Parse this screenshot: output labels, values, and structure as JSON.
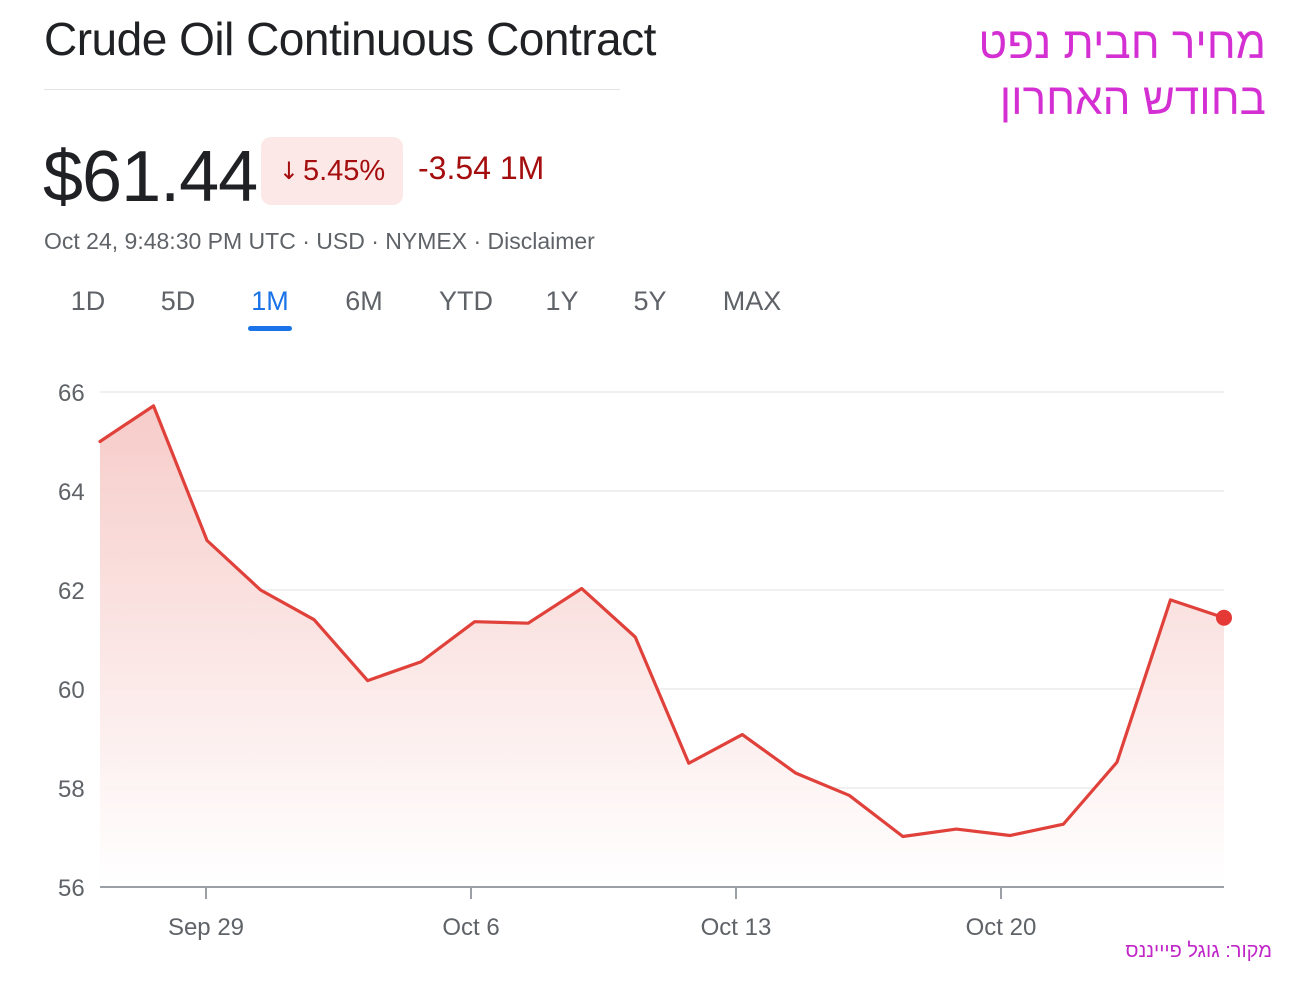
{
  "header": {
    "title": "Crude Oil Continuous Contract",
    "price": "$61.44",
    "change_arrow": "↓",
    "change_percent": "5.45%",
    "change_abs": "-3.54 1M",
    "meta": "Oct 24, 9:48:30 PM UTC · USD · NYMEX · Disclaimer"
  },
  "tabs": [
    "1D",
    "5D",
    "1M",
    "6M",
    "YTD",
    "1Y",
    "5Y",
    "MAX"
  ],
  "active_tab": "1M",
  "overlay": {
    "title_line1": "מחיר חבית נפט",
    "title_line2": "בחודש האחרון",
    "source": "מקור: גוגל פיייננס"
  },
  "colors": {
    "line": "#e0413a",
    "area_top": "#f6c9c6",
    "accent": "#1a73e8",
    "negative": "#a50e0e",
    "overlay_text": "#d42fd2"
  },
  "chart_data": {
    "type": "area",
    "title": "",
    "xlabel": "",
    "ylabel": "",
    "ylim": [
      56,
      66
    ],
    "yticks": [
      66,
      64,
      62,
      60,
      58,
      56
    ],
    "xticks": [
      {
        "label": "Sep 29",
        "index": 2
      },
      {
        "label": "Oct 6",
        "index": 7
      },
      {
        "label": "Oct 13",
        "index": 12
      },
      {
        "label": "Oct 20",
        "index": 17
      }
    ],
    "x": [
      "Sep 25",
      "Sep 26",
      "Sep 29",
      "Sep 30",
      "Oct 1",
      "Oct 2",
      "Oct 3",
      "Oct 6",
      "Oct 7",
      "Oct 8",
      "Oct 9",
      "Oct 10",
      "Oct 13",
      "Oct 14",
      "Oct 15",
      "Oct 16",
      "Oct 17",
      "Oct 20",
      "Oct 21",
      "Oct 22",
      "Oct 23",
      "Oct 24"
    ],
    "series": [
      {
        "values": [
          65.0,
          65.72,
          63.0,
          62.0,
          61.4,
          60.17,
          60.55,
          61.36,
          61.33,
          62.03,
          61.05,
          58.5,
          59.08,
          58.3,
          57.85,
          57.02,
          57.17,
          57.04,
          57.27,
          58.52,
          61.8,
          61.44
        ]
      }
    ],
    "grid": true,
    "legend": "none",
    "last_point_marker": true
  }
}
